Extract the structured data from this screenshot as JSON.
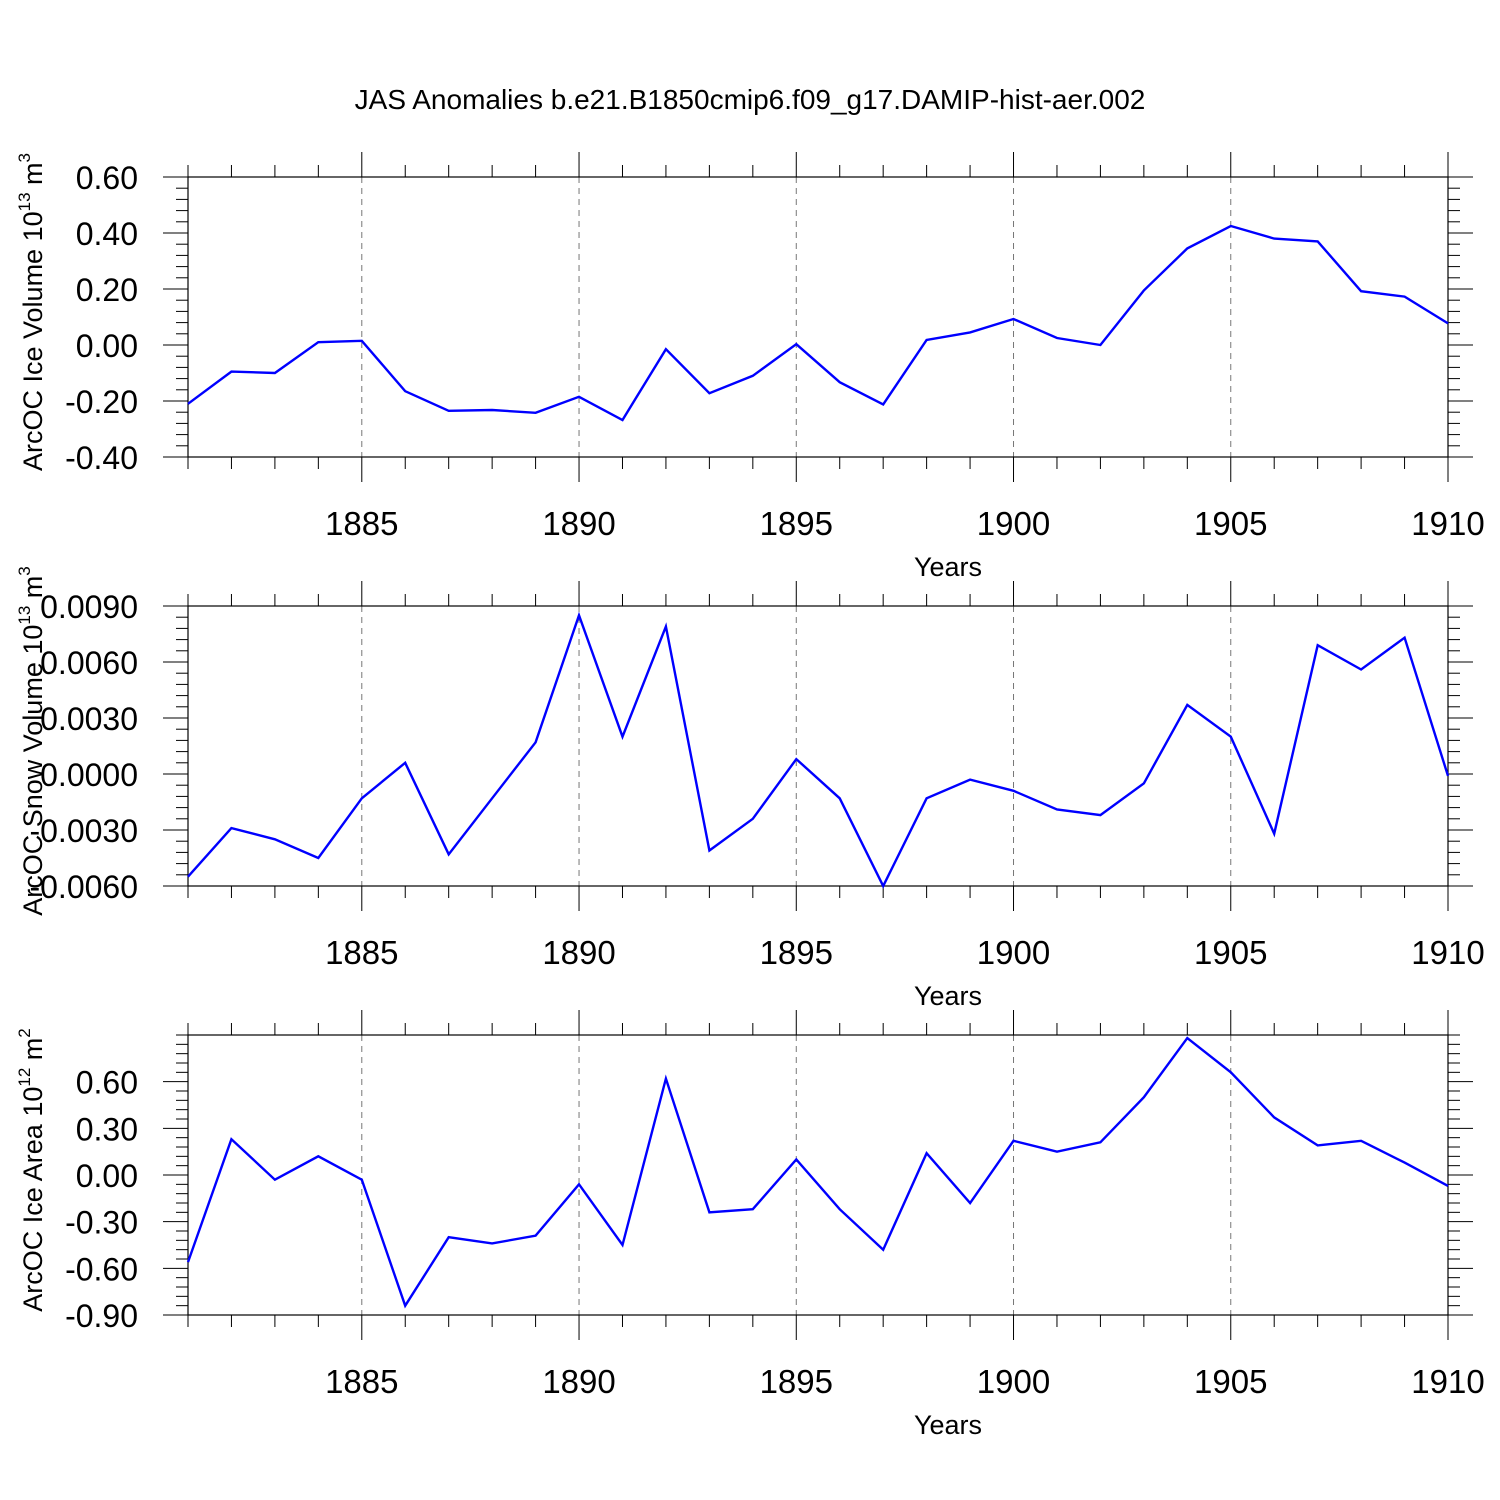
{
  "title": "JAS Anomalies b.e21.B1850cmip6.f09_g17.DAMIP-hist-aer.002",
  "chart_data": [
    {
      "type": "line",
      "name": "ice-volume",
      "ylabel_main": "ArcOC Ice Volume 10",
      "ylabel_sup1": "13",
      "ylabel_mid": " m",
      "ylabel_sup2": "3",
      "xlabel": "Years",
      "xlim": [
        1881,
        1910
      ],
      "ylim": [
        -0.4,
        0.6
      ],
      "xticks": [
        1885,
        1890,
        1895,
        1900,
        1905,
        1910
      ],
      "yticks": [
        -0.4,
        -0.2,
        0.0,
        0.2,
        0.4,
        0.6
      ],
      "ytick_labels": [
        "-0.40",
        "-0.20",
        "0.00",
        "0.20",
        "0.40",
        "0.60"
      ],
      "grid_x": [
        1885,
        1890,
        1895,
        1900,
        1905
      ],
      "color": "#0000ff",
      "x": [
        1881,
        1882,
        1883,
        1884,
        1885,
        1886,
        1887,
        1888,
        1889,
        1890,
        1891,
        1892,
        1893,
        1894,
        1895,
        1896,
        1897,
        1898,
        1899,
        1900,
        1901,
        1902,
        1903,
        1904,
        1905,
        1906,
        1907,
        1908,
        1909,
        1910
      ],
      "y": [
        -0.21,
        -0.095,
        -0.1,
        0.01,
        0.015,
        -0.165,
        -0.235,
        -0.232,
        -0.242,
        -0.185,
        -0.268,
        -0.015,
        -0.172,
        -0.11,
        0.003,
        -0.133,
        -0.212,
        0.018,
        0.045,
        0.093,
        0.025,
        0.0,
        0.195,
        0.345,
        0.425,
        0.38,
        0.37,
        0.192,
        0.173,
        0.077
      ]
    },
    {
      "type": "line",
      "name": "snow-volume",
      "ylabel_main": "ArcOC Snow Volume 10",
      "ylabel_sup1": "13",
      "ylabel_mid": " m",
      "ylabel_sup2": "3",
      "xlabel": "Years",
      "xlim": [
        1881,
        1910
      ],
      "ylim": [
        -0.006,
        0.009
      ],
      "xticks": [
        1885,
        1890,
        1895,
        1900,
        1905,
        1910
      ],
      "yticks": [
        -0.006,
        -0.003,
        0.0,
        0.003,
        0.006,
        0.009
      ],
      "ytick_labels": [
        "-0.0060",
        "-0.0030",
        "0.0000",
        "0.0030",
        "0.0060",
        "0.0090"
      ],
      "grid_x": [
        1885,
        1890,
        1895,
        1900,
        1905
      ],
      "color": "#0000ff",
      "x": [
        1881,
        1882,
        1883,
        1884,
        1885,
        1886,
        1887,
        1888,
        1889,
        1890,
        1891,
        1892,
        1893,
        1894,
        1895,
        1896,
        1897,
        1898,
        1899,
        1900,
        1901,
        1902,
        1903,
        1904,
        1905,
        1906,
        1907,
        1908,
        1909,
        1910
      ],
      "y": [
        -0.0055,
        -0.0029,
        -0.0035,
        -0.0045,
        -0.0013,
        0.0006,
        -0.0043,
        -0.0013,
        0.0017,
        0.0085,
        0.002,
        0.0079,
        -0.0041,
        -0.0024,
        0.0008,
        -0.0013,
        -0.006,
        -0.0013,
        -0.0003,
        -0.0009,
        -0.0019,
        -0.0022,
        -0.0005,
        0.0037,
        0.002,
        -0.0032,
        0.0069,
        0.0056,
        0.0073,
        -0.0001
      ]
    },
    {
      "type": "line",
      "name": "ice-area",
      "ylabel_main": "ArcOC Ice Area 10",
      "ylabel_sup1": "12",
      "ylabel_mid": " m",
      "ylabel_sup2": "2",
      "xlabel": "Years",
      "xlim": [
        1881,
        1910
      ],
      "ylim": [
        -0.9,
        0.9
      ],
      "xticks": [
        1885,
        1890,
        1895,
        1900,
        1905,
        1910
      ],
      "yticks": [
        -0.9,
        -0.6,
        -0.3,
        0.0,
        0.3,
        0.6
      ],
      "ytick_labels": [
        "-0.90",
        "-0.60",
        "-0.30",
        "0.00",
        "0.30",
        "0.60"
      ],
      "grid_x": [
        1885,
        1890,
        1895,
        1900,
        1905
      ],
      "color": "#0000ff",
      "x": [
        1881,
        1882,
        1883,
        1884,
        1885,
        1886,
        1887,
        1888,
        1889,
        1890,
        1891,
        1892,
        1893,
        1894,
        1895,
        1896,
        1897,
        1898,
        1899,
        1900,
        1901,
        1902,
        1903,
        1904,
        1905,
        1906,
        1907,
        1908,
        1909,
        1910
      ],
      "y": [
        -0.56,
        0.23,
        -0.03,
        0.12,
        -0.03,
        -0.84,
        -0.4,
        -0.44,
        -0.39,
        -0.06,
        -0.45,
        0.62,
        -0.24,
        -0.22,
        0.1,
        -0.22,
        -0.48,
        0.14,
        -0.18,
        0.22,
        0.15,
        0.21,
        0.5,
        0.88,
        0.66,
        0.37,
        0.19,
        0.22,
        0.08,
        -0.07
      ]
    }
  ]
}
